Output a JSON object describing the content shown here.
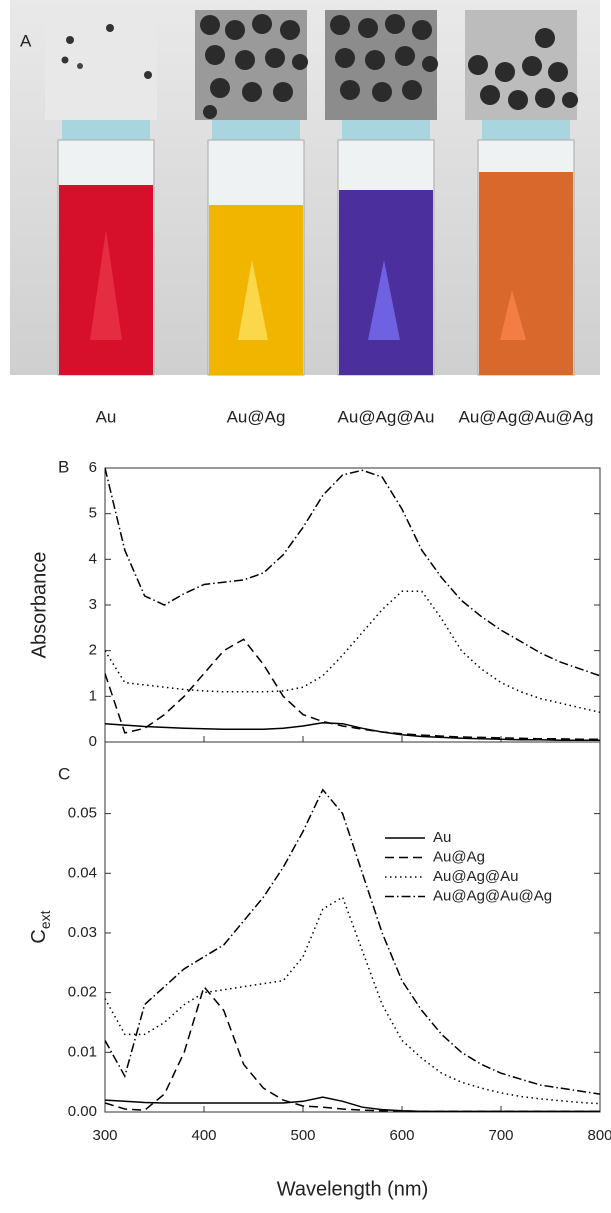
{
  "photo_panel": {
    "panel_label": "A",
    "captions": [
      "Au",
      "Au@Ag",
      "Au@Ag@Au",
      "Au@Ag@Au@Ag"
    ]
  },
  "chart_data": [
    {
      "type": "line",
      "panel_label": "B",
      "ylabel": "Absorbance",
      "x": [
        300,
        320,
        340,
        360,
        380,
        400,
        420,
        440,
        460,
        480,
        500,
        520,
        540,
        560,
        580,
        600,
        620,
        640,
        660,
        680,
        700,
        720,
        740,
        760,
        780,
        800
      ],
      "xlim": [
        300,
        800
      ],
      "xticks": [
        300,
        400,
        500,
        600,
        700,
        800
      ],
      "xtick_labels": false,
      "ylim": [
        0,
        6
      ],
      "yticks": [
        0,
        1,
        2,
        3,
        4,
        5,
        6
      ],
      "series": [
        {
          "color": "#000000",
          "dash": "solid",
          "values": [
            0.4,
            0.37,
            0.34,
            0.32,
            0.3,
            0.29,
            0.28,
            0.28,
            0.28,
            0.3,
            0.35,
            0.42,
            0.4,
            0.3,
            0.22,
            0.16,
            0.12,
            0.1,
            0.08,
            0.07,
            0.06,
            0.05,
            0.05,
            0.04,
            0.04,
            0.04
          ]
        },
        {
          "color": "#000000",
          "dash": "dashed",
          "values": [
            1.5,
            0.2,
            0.3,
            0.6,
            1.0,
            1.5,
            2.0,
            2.25,
            1.7,
            1.0,
            0.6,
            0.45,
            0.35,
            0.28,
            0.22,
            0.18,
            0.15,
            0.13,
            0.11,
            0.1,
            0.09,
            0.08,
            0.07,
            0.07,
            0.06,
            0.06
          ]
        },
        {
          "color": "#000000",
          "dash": "dotted",
          "values": [
            2.0,
            1.3,
            1.25,
            1.2,
            1.15,
            1.12,
            1.1,
            1.1,
            1.1,
            1.12,
            1.2,
            1.45,
            1.9,
            2.4,
            2.9,
            3.3,
            3.3,
            2.7,
            2.0,
            1.6,
            1.3,
            1.1,
            0.95,
            0.85,
            0.75,
            0.65
          ]
        },
        {
          "color": "#000000",
          "dash": "dashdot",
          "values": [
            6.0,
            4.2,
            3.2,
            3.0,
            3.25,
            3.45,
            3.5,
            3.55,
            3.7,
            4.1,
            4.7,
            5.4,
            5.85,
            5.95,
            5.8,
            5.1,
            4.2,
            3.6,
            3.1,
            2.75,
            2.45,
            2.2,
            1.95,
            1.75,
            1.6,
            1.45
          ]
        }
      ]
    },
    {
      "type": "line",
      "panel_label": "C",
      "ylabel": "C",
      "ylabel_sub": "ext",
      "xlabel": "Wavelength (nm)",
      "x": [
        300,
        320,
        340,
        360,
        380,
        400,
        420,
        440,
        460,
        480,
        500,
        520,
        540,
        560,
        580,
        600,
        620,
        640,
        660,
        680,
        700,
        720,
        740,
        760,
        780,
        800
      ],
      "xlim": [
        300,
        800
      ],
      "xticks": [
        300,
        400,
        500,
        600,
        700,
        800
      ],
      "xtick_labels": true,
      "ylim": [
        0,
        0.062
      ],
      "yticks": [
        {
          "value": 0,
          "label": "0.00"
        },
        0.01,
        0.02,
        0.03,
        0.04,
        0.05
      ],
      "legend": "upper right",
      "series": [
        {
          "name": "Au",
          "color": "#000000",
          "dash": "solid",
          "values": [
            0.002,
            0.0018,
            0.0016,
            0.0015,
            0.0015,
            0.0015,
            0.0015,
            0.0015,
            0.0015,
            0.0015,
            0.0018,
            0.0025,
            0.0018,
            0.0008,
            0.0004,
            0.0002,
            0.0001,
            0.0001,
            0.0001,
            0.0001,
            0.0001,
            0.0001,
            0.0001,
            0.0001,
            0.0001,
            0.0001
          ]
        },
        {
          "name": "Au@Ag",
          "color": "#000000",
          "dash": "dashed",
          "values": [
            0.0015,
            0.0005,
            0.0003,
            0.003,
            0.01,
            0.021,
            0.017,
            0.008,
            0.004,
            0.002,
            0.001,
            0.0008,
            0.0005,
            0.0003,
            0.0002,
            0.0002,
            0.0001,
            0.0001,
            0.0001,
            0.0001,
            0.0001,
            0.0001,
            0.0001,
            0.0001,
            0.0001,
            0.0001
          ]
        },
        {
          "name": "Au@Ag@Au",
          "color": "#000000",
          "dash": "dotted",
          "values": [
            0.019,
            0.013,
            0.013,
            0.015,
            0.018,
            0.02,
            0.0205,
            0.021,
            0.0215,
            0.022,
            0.026,
            0.034,
            0.036,
            0.027,
            0.018,
            0.012,
            0.009,
            0.0065,
            0.005,
            0.004,
            0.0032,
            0.0026,
            0.0022,
            0.0019,
            0.0016,
            0.0014
          ]
        },
        {
          "name": "Au@Ag@Au@Ag",
          "color": "#000000",
          "dash": "dashdot",
          "values": [
            0.012,
            0.006,
            0.018,
            0.021,
            0.024,
            0.026,
            0.028,
            0.032,
            0.036,
            0.041,
            0.047,
            0.054,
            0.05,
            0.04,
            0.03,
            0.022,
            0.017,
            0.013,
            0.01,
            0.008,
            0.0065,
            0.0055,
            0.0045,
            0.004,
            0.0035,
            0.003
          ]
        }
      ]
    }
  ]
}
